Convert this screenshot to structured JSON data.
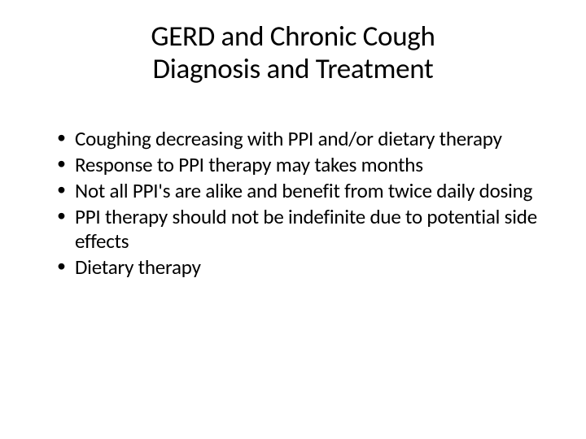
{
  "title_line1": "GERD and Chronic Cough",
  "title_line2": "Diagnosis and Treatment",
  "bullets": [
    "Coughing decreasing with PPI and/or dietary therapy",
    "Response to PPI therapy may takes months",
    "Not all PPI's are alike and benefit from twice daily dosing",
    "PPI therapy should not be indefinite due to potential side effects",
    "Dietary therapy"
  ]
}
